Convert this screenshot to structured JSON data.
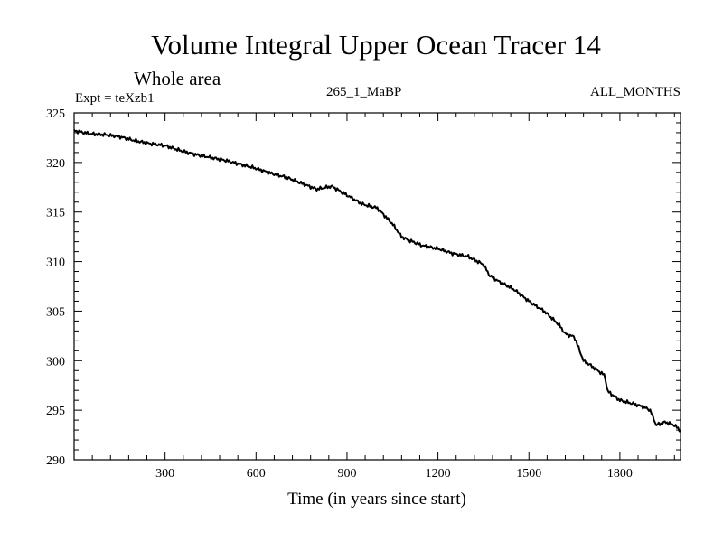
{
  "chart_data": {
    "type": "line",
    "title": "Volume Integral Upper Ocean Tracer 14",
    "subtitle": "Whole area",
    "experiment_label": "Expt = teXzb1",
    "run_label": "265_1_MaBP",
    "months_label": "ALL_MONTHS",
    "xlabel": "Time (in years since start)",
    "ylabel": "",
    "xlim": [
      0,
      2000
    ],
    "ylim": [
      290,
      325
    ],
    "xticks": [
      300,
      600,
      900,
      1200,
      1500,
      1800
    ],
    "yticks": [
      290,
      295,
      300,
      305,
      310,
      315,
      320,
      325
    ],
    "series": [
      {
        "name": "Tracer 14",
        "color": "#000000",
        "x": [
          0,
          50,
          100,
          150,
          200,
          250,
          300,
          350,
          400,
          450,
          500,
          550,
          600,
          650,
          700,
          750,
          800,
          850,
          900,
          950,
          1000,
          1050,
          1080,
          1100,
          1150,
          1200,
          1250,
          1300,
          1350,
          1370,
          1400,
          1450,
          1500,
          1550,
          1600,
          1620,
          1650,
          1680,
          1700,
          1750,
          1760,
          1800,
          1850,
          1880,
          1900,
          1920,
          1950,
          1980,
          2000
        ],
        "y": [
          323.2,
          322.9,
          322.8,
          322.6,
          322.2,
          321.9,
          321.7,
          321.2,
          320.8,
          320.5,
          320.2,
          319.8,
          319.4,
          318.9,
          318.5,
          317.9,
          317.3,
          317.6,
          316.7,
          315.8,
          315.4,
          313.8,
          312.5,
          312.2,
          311.6,
          311.3,
          310.8,
          310.5,
          309.7,
          308.6,
          308.0,
          307.2,
          306.0,
          305.0,
          303.6,
          302.7,
          302.4,
          300.0,
          299.6,
          298.5,
          296.9,
          296.0,
          295.6,
          295.3,
          295.0,
          293.5,
          293.8,
          293.5,
          292.9
        ]
      }
    ]
  }
}
